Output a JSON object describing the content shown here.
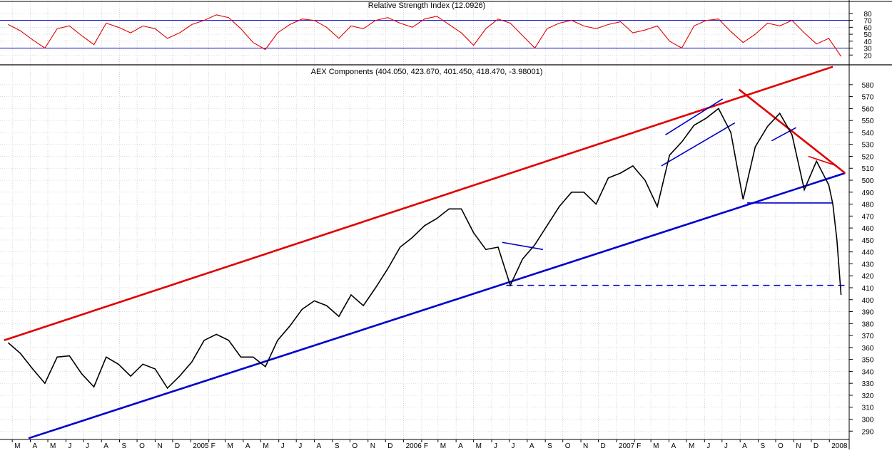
{
  "chart_data": [
    {
      "type": "line",
      "title": "Relative Strength Index (12.0926)",
      "ylim": [
        10,
        85
      ],
      "y_ticks": [
        20,
        30,
        40,
        50,
        60,
        70,
        80
      ],
      "grid": true,
      "reference_lines": [
        70,
        30
      ],
      "colors": {
        "series": "#e00000",
        "reference": "#0000cc"
      },
      "series": [
        {
          "x": [
            "2004-02-23",
            "2004-03-15",
            "2004-04-05",
            "2004-04-26",
            "2004-05-17",
            "2004-06-07",
            "2004-06-28",
            "2004-07-19",
            "2004-08-09",
            "2004-08-30",
            "2004-09-20",
            "2004-10-11",
            "2004-11-01",
            "2004-11-22",
            "2004-12-13",
            "2005-01-03",
            "2005-01-24",
            "2005-02-14",
            "2005-03-07",
            "2005-03-28",
            "2005-04-18",
            "2005-05-09",
            "2005-05-30",
            "2005-06-20",
            "2005-07-11",
            "2005-08-01",
            "2005-08-22",
            "2005-09-12",
            "2005-10-03",
            "2005-10-24",
            "2005-11-14",
            "2005-12-05",
            "2005-12-26",
            "2006-01-16",
            "2006-02-06",
            "2006-02-27",
            "2006-03-20",
            "2006-04-10",
            "2006-05-01",
            "2006-05-22",
            "2006-06-12",
            "2006-07-03",
            "2006-07-24",
            "2006-08-14",
            "2006-09-04",
            "2006-09-25",
            "2006-10-16",
            "2006-11-06",
            "2006-11-27",
            "2006-12-18",
            "2007-01-08",
            "2007-01-29",
            "2007-02-19",
            "2007-03-12",
            "2007-04-02",
            "2007-04-23",
            "2007-05-14",
            "2007-06-04",
            "2007-06-25",
            "2007-07-16",
            "2007-08-06",
            "2007-08-27",
            "2007-09-17",
            "2007-10-08",
            "2007-10-29",
            "2007-11-19",
            "2007-12-10",
            "2007-12-31",
            "2008-01-21"
          ],
          "values": [
            64,
            55,
            42,
            30,
            58,
            62,
            48,
            35,
            66,
            60,
            52,
            62,
            58,
            44,
            52,
            64,
            70,
            78,
            74,
            58,
            38,
            28,
            52,
            64,
            72,
            70,
            60,
            44,
            62,
            58,
            70,
            74,
            66,
            60,
            72,
            76,
            64,
            52,
            34,
            58,
            72,
            66,
            48,
            30,
            58,
            66,
            70,
            62,
            58,
            64,
            68,
            52,
            56,
            62,
            40,
            30,
            62,
            70,
            72,
            54,
            38,
            50,
            66,
            62,
            70,
            52,
            36,
            44,
            18
          ]
        }
      ]
    },
    {
      "type": "line",
      "title": "AEX Components (404.050, 423.670, 401.450, 418.470, -3.98001)",
      "ylim": [
        283,
        596
      ],
      "y_ticks": [
        290,
        300,
        310,
        320,
        330,
        340,
        350,
        360,
        370,
        380,
        390,
        400,
        410,
        420,
        430,
        440,
        450,
        460,
        470,
        480,
        490,
        500,
        510,
        520,
        530,
        540,
        550,
        560,
        570,
        580
      ],
      "x_tick_labels": [
        "M",
        "A",
        "M",
        "J",
        "J",
        "A",
        "S",
        "O",
        "N",
        "D",
        "2005",
        "F",
        "M",
        "A",
        "M",
        "J",
        "J",
        "A",
        "S",
        "O",
        "N",
        "D",
        "2006",
        "F",
        "M",
        "A",
        "M",
        "J",
        "J",
        "A",
        "S",
        "O",
        "N",
        "D",
        "2007",
        "F",
        "M",
        "A",
        "M",
        "J",
        "J",
        "A",
        "S",
        "O",
        "N",
        "D",
        "2008"
      ],
      "grid": true,
      "colors": {
        "price": "#000000",
        "support": "#0000cc",
        "resistance": "#e00000"
      },
      "series": [
        {
          "x": [
            "2004-02-23",
            "2004-03-15",
            "2004-04-05",
            "2004-04-26",
            "2004-05-17",
            "2004-06-07",
            "2004-06-28",
            "2004-07-19",
            "2004-08-09",
            "2004-08-30",
            "2004-09-20",
            "2004-10-11",
            "2004-11-01",
            "2004-11-22",
            "2004-12-13",
            "2005-01-03",
            "2005-01-24",
            "2005-02-14",
            "2005-03-07",
            "2005-03-28",
            "2005-04-18",
            "2005-05-09",
            "2005-05-30",
            "2005-06-20",
            "2005-07-11",
            "2005-08-01",
            "2005-08-22",
            "2005-09-12",
            "2005-10-03",
            "2005-10-24",
            "2005-11-14",
            "2005-12-05",
            "2005-12-26",
            "2006-01-16",
            "2006-02-06",
            "2006-02-27",
            "2006-03-20",
            "2006-04-10",
            "2006-05-01",
            "2006-05-22",
            "2006-06-12",
            "2006-07-03",
            "2006-07-24",
            "2006-08-14",
            "2006-09-04",
            "2006-09-25",
            "2006-10-16",
            "2006-11-06",
            "2006-11-27",
            "2006-12-18",
            "2007-01-08",
            "2007-01-29",
            "2007-02-19",
            "2007-03-12",
            "2007-04-02",
            "2007-04-23",
            "2007-05-14",
            "2007-06-04",
            "2007-06-25",
            "2007-07-16",
            "2007-08-06",
            "2007-08-27",
            "2007-09-17",
            "2007-10-08",
            "2007-10-29",
            "2007-11-19",
            "2007-12-10",
            "2007-12-31",
            "2008-01-07",
            "2008-01-14",
            "2008-01-21"
          ],
          "values": [
            364,
            355,
            342,
            330,
            352,
            353,
            338,
            327,
            352,
            346,
            336,
            346,
            342,
            326,
            336,
            348,
            366,
            371,
            366,
            352,
            352,
            344,
            366,
            378,
            392,
            399,
            395,
            386,
            404,
            395,
            410,
            426,
            444,
            452,
            462,
            468,
            476,
            476,
            456,
            442,
            444,
            412,
            434,
            446,
            462,
            478,
            490,
            490,
            480,
            502,
            506,
            512,
            500,
            478,
            521,
            532,
            546,
            552,
            560,
            540,
            484,
            528,
            545,
            556,
            538,
            492,
            516,
            496,
            480,
            450,
            404
          ]
        }
      ],
      "trendlines": [
        {
          "name": "channel-top",
          "color": "#e00000",
          "from": [
            "2004-02-16",
            366
          ],
          "to": [
            "2008-01-07",
            595
          ]
        },
        {
          "name": "channel-bottom",
          "color": "#0000cc",
          "from": [
            "2004-03-29",
            284
          ],
          "to": [
            "2008-01-28",
            506
          ]
        },
        {
          "name": "wedge-top",
          "color": "#e00000",
          "from": [
            "2007-07-30",
            576
          ],
          "to": [
            "2008-01-28",
            506
          ]
        },
        {
          "name": "jun06-flag",
          "color": "#0000cc",
          "from": [
            "2006-06-19",
            448
          ],
          "to": [
            "2006-08-28",
            442
          ]
        },
        {
          "name": "channel-2007-upper",
          "color": "#0000cc",
          "from": [
            "2007-03-26",
            538
          ],
          "to": [
            "2007-07-02",
            568
          ]
        },
        {
          "name": "channel-2007-lower",
          "color": "#0000cc",
          "from": [
            "2007-03-19",
            512
          ],
          "to": [
            "2007-07-23",
            548
          ]
        },
        {
          "name": "oct07-flag",
          "color": "#0000cc",
          "from": [
            "2007-09-24",
            533
          ],
          "to": [
            "2007-11-05",
            544
          ]
        },
        {
          "name": "dec07-up-trend",
          "color": "#e00000",
          "from": [
            "2007-11-26",
            520
          ],
          "to": [
            "2008-01-14",
            512
          ]
        },
        {
          "name": "support-480",
          "color": "#0000cc",
          "from": [
            "2007-08-13",
            481
          ],
          "to": [
            "2008-01-07",
            481
          ]
        },
        {
          "name": "support-412",
          "color": "#0000cc",
          "dashed": true,
          "from": [
            "2006-06-26",
            412
          ],
          "to": [
            "2008-01-28",
            412
          ]
        }
      ]
    }
  ]
}
